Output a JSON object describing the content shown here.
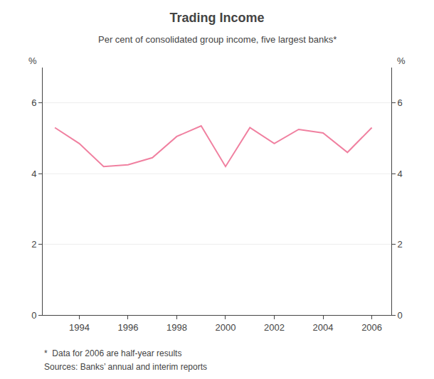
{
  "chart_data": {
    "type": "line",
    "title": "Trading Income",
    "subtitle": "Per cent of consolidated group income, five largest banks*",
    "ylabel": "%",
    "y2label": "%",
    "annotations": [
      "*  Data for 2006 are half-year results",
      "Sources: Banks’ annual and interim reports"
    ],
    "x": [
      1993,
      1994,
      1995,
      1996,
      1997,
      1998,
      1999,
      2000,
      2001,
      2002,
      2003,
      2004,
      2005,
      2006
    ],
    "values": [
      5.3,
      4.85,
      4.2,
      4.25,
      4.45,
      5.05,
      5.35,
      4.2,
      5.3,
      4.85,
      5.25,
      5.15,
      4.6,
      5.3
    ],
    "color": "#f080a0",
    "xlim": [
      1992.5,
      2006.8
    ],
    "xticks": [
      1994,
      1996,
      1998,
      2000,
      2002,
      2004,
      2006
    ],
    "ylim": [
      0,
      7
    ],
    "yticks": [
      0,
      2,
      4,
      6
    ],
    "y2lim": [
      0,
      7
    ],
    "y2ticks": [
      0,
      2,
      4,
      6
    ],
    "grid": true
  }
}
